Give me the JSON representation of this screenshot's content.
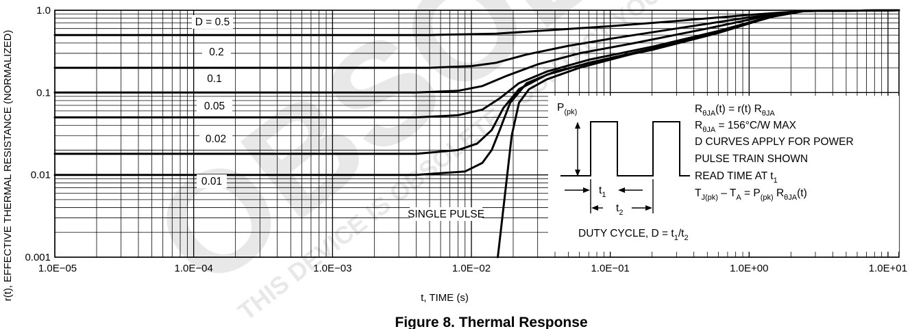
{
  "figure": {
    "caption": "Figure 8. Thermal Response",
    "watermark_big": "OBSOLETE",
    "watermark_small": "THIS DEVICE IS OBSOLETE · CONTACT YOUR ON SEMICONDUCTOR · REPRESENTATIVE FOR INFORMATION"
  },
  "chart_data": {
    "type": "line",
    "xlabel": "t, TIME (s)",
    "ylabel": "r(t), EFFECTIVE THERMAL RESISTANCE  (NORMALIZED)",
    "xscale": "log",
    "yscale": "log",
    "xlim": [
      1e-05,
      12
    ],
    "ylim": [
      0.001,
      1.0
    ],
    "grid": true,
    "xtick_labels": [
      "1.0E−05",
      "1.0E−04",
      "1.0E−03",
      "1.0E−02",
      "1.0E−01",
      "1.0E+00",
      "1.0E+01"
    ],
    "xtick_values": [
      1e-05,
      0.0001,
      0.001,
      0.01,
      0.1,
      1,
      10
    ],
    "ytick_labels": [
      "1.0",
      "0.1",
      "0.01",
      "0.001"
    ],
    "ytick_values": [
      1.0,
      0.1,
      0.01,
      0.001
    ],
    "series": [
      {
        "name": "D = 0.5",
        "x": [
          1e-05,
          0.005,
          0.015,
          0.03,
          0.1,
          0.3,
          1,
          2.5,
          12
        ],
        "y": [
          0.5,
          0.5,
          0.52,
          0.56,
          0.64,
          0.74,
          0.88,
          0.98,
          1.0
        ]
      },
      {
        "name": "0.2",
        "x": [
          1e-05,
          0.005,
          0.01,
          0.015,
          0.025,
          0.05,
          0.1,
          0.3,
          1,
          2.5,
          12
        ],
        "y": [
          0.2,
          0.2,
          0.21,
          0.23,
          0.29,
          0.37,
          0.45,
          0.6,
          0.82,
          0.98,
          1.0
        ]
      },
      {
        "name": "0.1",
        "x": [
          1e-05,
          0.004,
          0.008,
          0.012,
          0.018,
          0.03,
          0.06,
          0.15,
          0.5,
          1.2,
          2.5,
          12
        ],
        "y": [
          0.1,
          0.1,
          0.105,
          0.12,
          0.16,
          0.22,
          0.3,
          0.4,
          0.6,
          0.82,
          0.98,
          1.0
        ]
      },
      {
        "name": "0.05",
        "x": [
          1e-05,
          0.004,
          0.008,
          0.012,
          0.016,
          0.022,
          0.035,
          0.07,
          0.2,
          0.6,
          1.5,
          2.5,
          12
        ],
        "y": [
          0.05,
          0.05,
          0.053,
          0.062,
          0.085,
          0.13,
          0.18,
          0.25,
          0.36,
          0.56,
          0.86,
          0.98,
          1.0
        ]
      },
      {
        "name": "0.02",
        "x": [
          1e-05,
          0.004,
          0.008,
          0.011,
          0.014,
          0.017,
          0.022,
          0.035,
          0.07,
          0.2,
          0.6,
          1.5,
          2.5,
          12
        ],
        "y": [
          0.018,
          0.018,
          0.02,
          0.024,
          0.035,
          0.065,
          0.11,
          0.165,
          0.23,
          0.34,
          0.54,
          0.85,
          0.98,
          1.0
        ]
      },
      {
        "name": "0.01",
        "x": [
          1e-05,
          0.004,
          0.009,
          0.012,
          0.014,
          0.016,
          0.019,
          0.025,
          0.04,
          0.08,
          0.2,
          0.6,
          1.5,
          2.5,
          12
        ],
        "y": [
          0.01,
          0.01,
          0.011,
          0.014,
          0.02,
          0.035,
          0.075,
          0.13,
          0.18,
          0.24,
          0.33,
          0.53,
          0.85,
          0.98,
          1.0
        ]
      },
      {
        "name": "SINGLE PULSE",
        "x": [
          0.0155,
          0.0175,
          0.0195,
          0.022,
          0.026,
          0.035,
          0.06,
          0.15,
          0.5,
          1.5,
          2.5,
          12
        ],
        "y": [
          0.001,
          0.006,
          0.03,
          0.075,
          0.11,
          0.145,
          0.2,
          0.3,
          0.5,
          0.84,
          0.98,
          1.0
        ]
      }
    ],
    "curve_labels": [
      "D = 0.5",
      "0.2",
      "0.1",
      "0.05",
      "0.02",
      "0.01",
      "SINGLE PULSE"
    ]
  },
  "inset": {
    "p_pk": "P",
    "p_pk_sub": "(pk)",
    "t1": "t",
    "t1_sub": "1",
    "t2": "t",
    "t2_sub": "2",
    "duty_cycle": "DUTY CYCLE, D = t",
    "duty_cycle_sub1": "1",
    "duty_cycle_slash": "/t",
    "duty_cycle_sub2": "2",
    "notes": {
      "line1_a": "R",
      "line1_sub1": "θJA",
      "line1_b": "(t) = r(t) R",
      "line1_sub2": "θJA",
      "line2_a": "R",
      "line2_sub": "θJA",
      "line2_b": " = 156°C/W MAX",
      "line3": "D CURVES APPLY FOR POWER",
      "line4": "PULSE TRAIN SHOWN",
      "line5_a": "READ TIME AT t",
      "line5_sub": "1",
      "line6_a": "T",
      "line6_sub1": "J(pk)",
      "line6_b": " – T",
      "line6_sub2": "A",
      "line6_c": " = P",
      "line6_sub3": "(pk)",
      "line6_d": " R",
      "line6_sub4": "θJA",
      "line6_e": "(t)"
    }
  }
}
